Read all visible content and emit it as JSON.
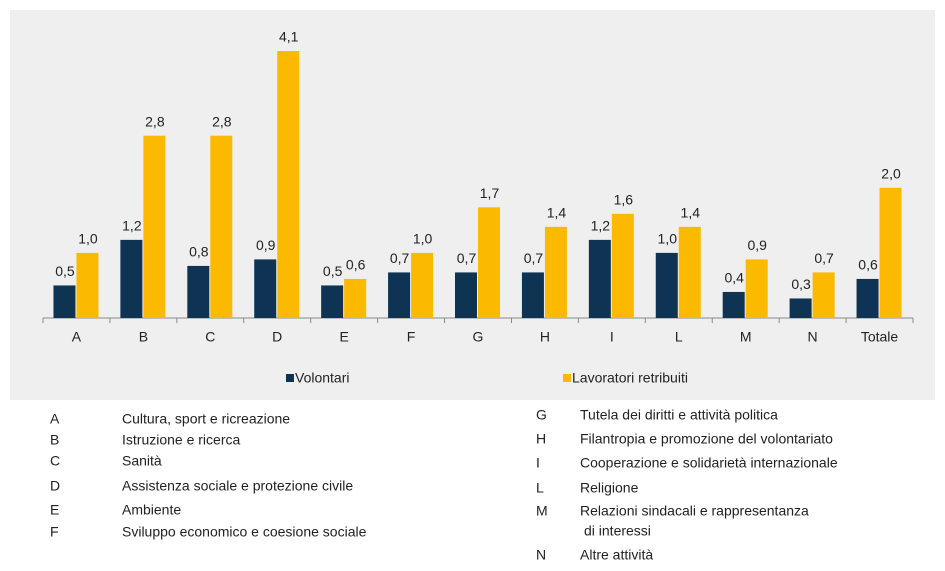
{
  "chart_data": {
    "type": "bar",
    "categories": [
      "A",
      "B",
      "C",
      "D",
      "E",
      "F",
      "G",
      "H",
      "I",
      "L",
      "M",
      "N",
      "Totale"
    ],
    "series": [
      {
        "name": "Volontari",
        "color": "#0f3352",
        "values": [
          0.5,
          1.2,
          0.8,
          0.9,
          0.5,
          0.7,
          0.7,
          0.7,
          1.2,
          1.0,
          0.4,
          0.3,
          0.6
        ],
        "value_labels": [
          "0,5",
          "1,2",
          "0,8",
          "0,9",
          "0,5",
          "0,7",
          "0,7",
          "0,7",
          "1,2",
          "1,0",
          "0,4",
          "0,3",
          "0,6"
        ]
      },
      {
        "name": "Lavoratori retribuiti",
        "color": "#fbb900",
        "values": [
          1.0,
          2.8,
          2.8,
          4.1,
          0.6,
          1.0,
          1.7,
          1.4,
          1.6,
          1.4,
          0.9,
          0.7,
          2.0
        ],
        "value_labels": [
          "1,0",
          "2,8",
          "2,8",
          "4,1",
          "0,6",
          "1,0",
          "1,7",
          "1,4",
          "1,6",
          "1,4",
          "0,9",
          "0,7",
          "2,0"
        ]
      }
    ],
    "ylim": [
      0,
      4.5
    ],
    "legend": "bottom"
  },
  "key": [
    {
      "code": "A",
      "lines": [
        "Cultura, sport e ricreazione"
      ]
    },
    {
      "code": "B",
      "lines": [
        "Istruzione e ricerca"
      ]
    },
    {
      "code": "C",
      "lines": [
        "Sanità"
      ]
    },
    {
      "code": "D",
      "lines": [
        "Assistenza sociale e protezione civile"
      ]
    },
    {
      "code": "E",
      "lines": [
        "Ambiente"
      ]
    },
    {
      "code": "F",
      "lines": [
        "Sviluppo economico e coesione sociale"
      ]
    },
    {
      "code": "G",
      "lines": [
        "Tutela dei diritti e attività politica"
      ]
    },
    {
      "code": "H",
      "lines": [
        "Filantropia e promozione del volontariato"
      ]
    },
    {
      "code": "I",
      "lines": [
        "Cooperazione e solidarietà internazionale"
      ]
    },
    {
      "code": "L",
      "lines": [
        "Religione"
      ]
    },
    {
      "code": "M",
      "lines": [
        "Relazioni sindacali e rappresentanza",
        "di interessi"
      ]
    },
    {
      "code": "N",
      "lines": [
        "Altre attività"
      ]
    }
  ]
}
